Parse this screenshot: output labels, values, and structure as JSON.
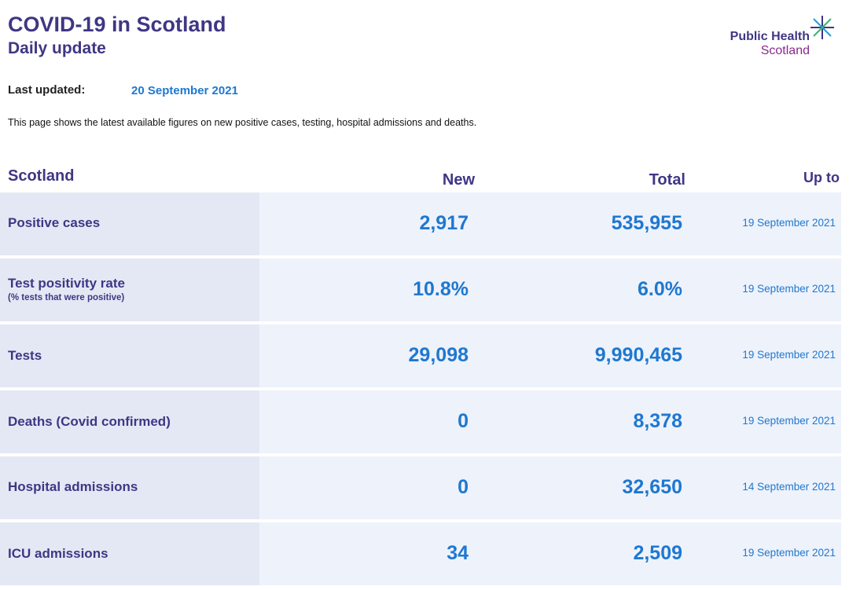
{
  "header": {
    "title": "COVID-19 in Scotland",
    "subtitle": "Daily update",
    "logo_line1": "Public Health",
    "logo_line2": "Scotland"
  },
  "last_updated": {
    "label": "Last updated:",
    "value": "20 September 2021"
  },
  "intro": "This page shows the latest available figures on new positive cases, testing, hospital admissions and deaths.",
  "table": {
    "headers": {
      "region": "Scotland",
      "new": "New",
      "total": "Total",
      "upto": "Up to"
    },
    "rows": [
      {
        "label": "Positive cases",
        "sublabel": "",
        "new": "2,917",
        "total": "535,955",
        "date": "19 September 2021"
      },
      {
        "label": "Test positivity rate",
        "sublabel": "(% tests that were positive)",
        "new": "10.8%",
        "total": "6.0%",
        "date": "19 September 2021"
      },
      {
        "label": "Tests",
        "sublabel": "",
        "new": "29,098",
        "total": "9,990,465",
        "date": "19 September 2021"
      },
      {
        "label": "Deaths (Covid confirmed)",
        "sublabel": "",
        "new": "0",
        "total": "8,378",
        "date": "19 September 2021"
      },
      {
        "label": "Hospital admissions",
        "sublabel": "",
        "new": "0",
        "total": "32,650",
        "date": "14 September 2021"
      },
      {
        "label": "ICU admissions",
        "sublabel": "",
        "new": "34",
        "total": "2,509",
        "date": "19 September 2021"
      }
    ]
  }
}
